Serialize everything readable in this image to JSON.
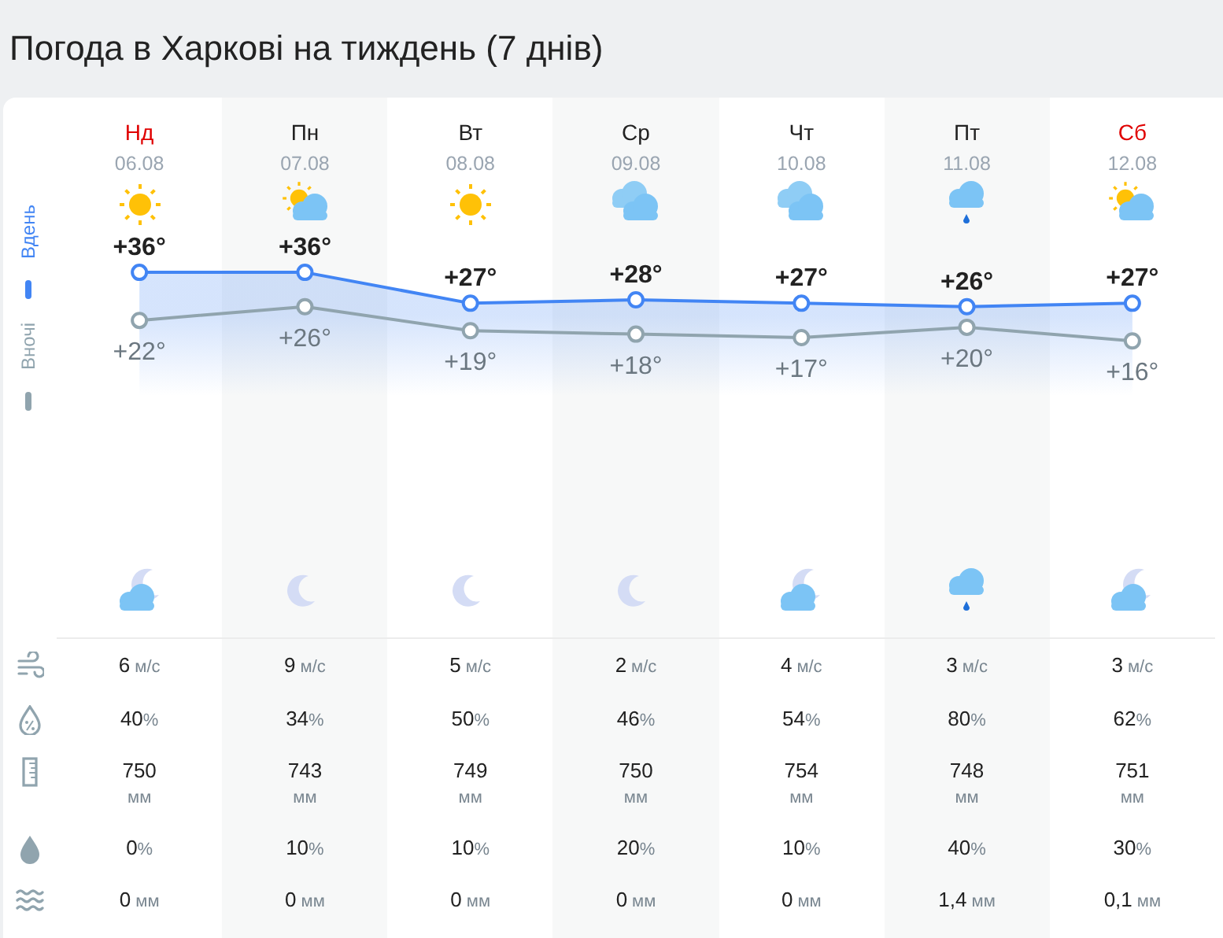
{
  "chart_data": {
    "type": "line",
    "title": "Погода в Харкові на тиждень (7 днів)",
    "categories": [
      "Нд\n06.08",
      "Пн\n07.08",
      "Вт\n08.08",
      "Ср\n09.08",
      "Чт\n10.08",
      "Пт\n11.08",
      "Сб\n12.08"
    ],
    "series": [
      {
        "name": "Вдень",
        "type": "area",
        "color": "#4285f4",
        "values": [
          36,
          36,
          27,
          28,
          27,
          26,
          27
        ],
        "value_labels": [
          "+36°",
          "+36°",
          "+27°",
          "+28°",
          "+27°",
          "+26°",
          "+27°"
        ]
      },
      {
        "name": "Вночі",
        "color": "#90a4ae",
        "values": [
          22,
          26,
          19,
          18,
          17,
          20,
          16
        ],
        "value_labels": [
          "+22°",
          "+26°",
          "+19°",
          "+18°",
          "+17°",
          "+20°",
          "+16°"
        ]
      }
    ],
    "legend": "left",
    "marker": "circle",
    "annotations": [
      "6 м/с",
      "9 м/с",
      "5 м/с",
      "2 м/с",
      "4 м/с",
      "3 м/с",
      "3 м/с",
      "40%",
      "34%",
      "50%",
      "46%",
      "54%",
      "80%",
      "62%",
      "750 мм",
      "743 мм",
      "749 мм",
      "750 мм",
      "754 мм",
      "748 мм",
      "751 мм",
      "0%",
      "10%",
      "10%",
      "20%",
      "10%",
      "40%",
      "30%",
      "0 мм",
      "0 мм",
      "0 мм",
      "0 мм",
      "0 мм",
      "1,4 мм",
      "0,1 мм"
    ]
  }
}
